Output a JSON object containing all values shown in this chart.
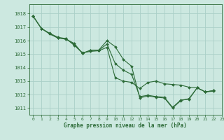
{
  "title": "Graphe pression niveau de la mer (hPa)",
  "background_color": "#cce8e0",
  "grid_color": "#aacfc8",
  "line_color": "#2d6b38",
  "xlim": [
    -0.5,
    23
  ],
  "ylim": [
    1010.5,
    1018.7
  ],
  "yticks": [
    1011,
    1012,
    1013,
    1014,
    1015,
    1016,
    1017,
    1018
  ],
  "xticks": [
    0,
    1,
    2,
    3,
    4,
    5,
    6,
    7,
    8,
    9,
    10,
    11,
    12,
    13,
    14,
    15,
    16,
    17,
    18,
    19,
    20,
    21,
    22,
    23
  ],
  "series1_x": [
    0,
    1,
    2,
    3,
    4,
    5,
    6,
    7,
    8,
    9,
    10,
    11,
    12,
    13,
    14,
    15,
    16,
    17,
    18,
    19,
    20,
    21,
    22
  ],
  "series1_y": [
    1017.8,
    1016.9,
    1016.5,
    1016.2,
    1016.1,
    1015.8,
    1015.05,
    1015.3,
    1015.3,
    1016.0,
    1015.55,
    1014.6,
    1014.1,
    1011.75,
    1011.9,
    1011.8,
    1011.75,
    1011.0,
    1011.55,
    1011.7,
    1012.5,
    1012.2,
    1012.3
  ],
  "series2_x": [
    0,
    1,
    2,
    3,
    4,
    5,
    6,
    7,
    8,
    9,
    10,
    11,
    12,
    13,
    14,
    15,
    16,
    17,
    18,
    19,
    20,
    21,
    22
  ],
  "series2_y": [
    1017.8,
    1016.9,
    1016.5,
    1016.2,
    1016.15,
    1015.65,
    1015.1,
    1015.2,
    1015.25,
    1015.5,
    1013.25,
    1013.0,
    1012.9,
    1012.45,
    1012.9,
    1013.0,
    1012.8,
    1012.75,
    1012.7,
    1012.55,
    1012.5,
    1012.2,
    1012.25
  ],
  "series3_x": [
    0,
    1,
    2,
    3,
    4,
    5,
    6,
    7,
    8,
    9,
    10,
    11,
    12,
    13,
    14,
    15,
    16,
    17,
    18,
    19,
    20,
    21,
    22
  ],
  "series3_y": [
    1017.8,
    1016.9,
    1016.55,
    1016.25,
    1016.15,
    1015.7,
    1015.08,
    1015.27,
    1015.28,
    1015.75,
    1014.3,
    1013.8,
    1013.5,
    1011.85,
    1011.95,
    1011.85,
    1011.8,
    1011.05,
    1011.6,
    1011.65,
    1012.5,
    1012.2,
    1012.3
  ]
}
